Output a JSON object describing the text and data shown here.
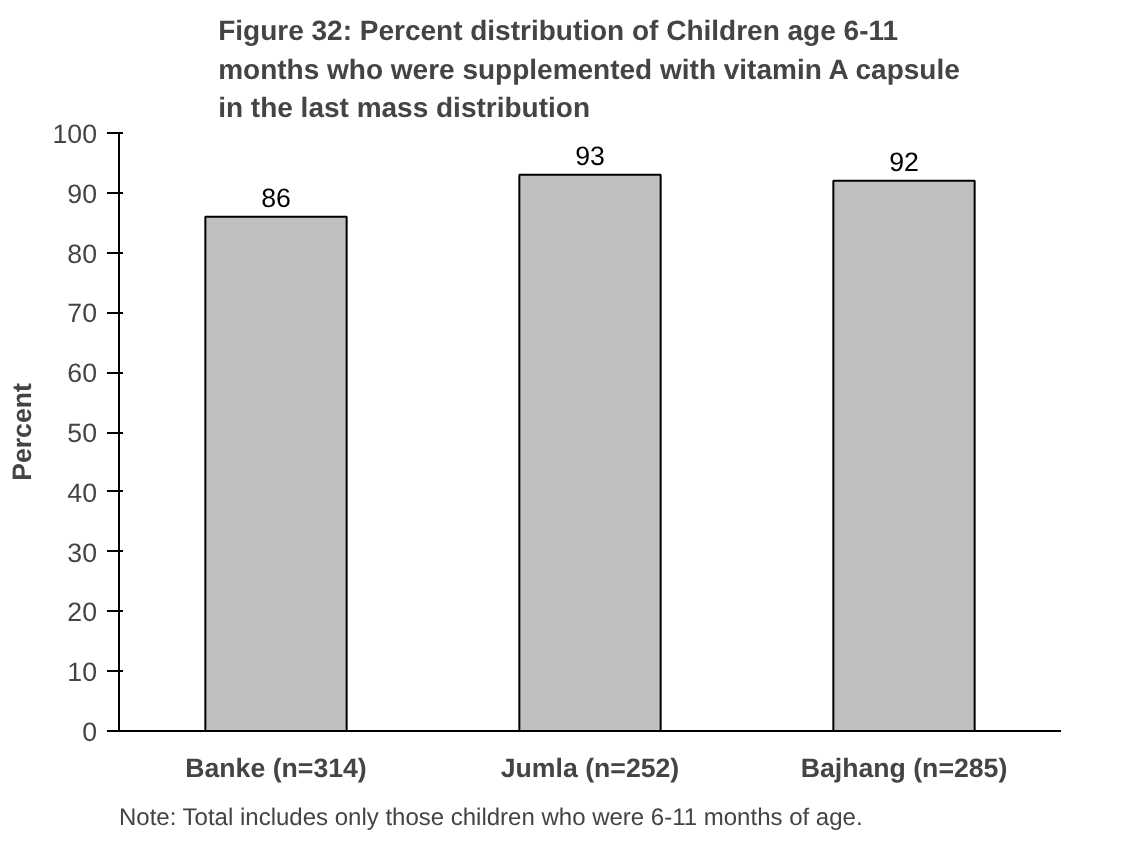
{
  "chart_data": {
    "type": "bar",
    "title": "Figure 32: Percent distribution of Children age 6-11 months who were supplemented with vitamin A capsule in the last mass distribution",
    "ylabel": "Percent",
    "categories": [
      "Banke (n=314)",
      "Jumla (n=252)",
      "Bajhang (n=285)"
    ],
    "values": [
      86,
      93,
      92
    ],
    "color": "#c0c0c0",
    "ylim": [
      0,
      100
    ],
    "yticks": [
      0,
      10,
      20,
      30,
      40,
      50,
      60,
      70,
      80,
      90,
      100
    ],
    "data_labels": true,
    "grid": false,
    "annotations": [
      "Note:  Total includes only those children who were 6-11 months of age."
    ]
  }
}
